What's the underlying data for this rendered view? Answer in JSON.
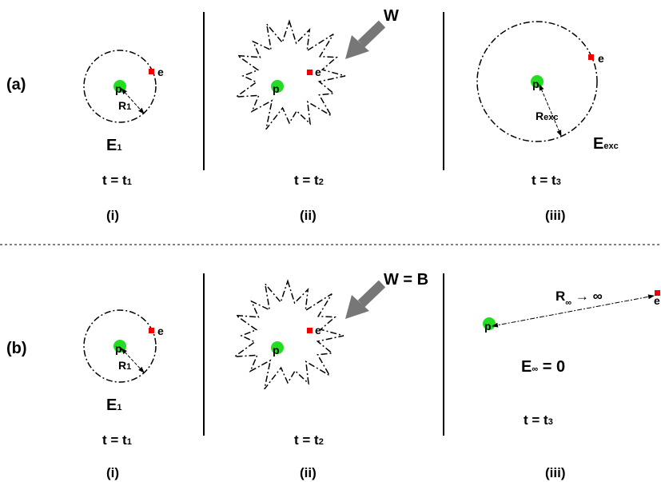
{
  "rows": [
    {
      "label": "(a)",
      "panels": [
        {
          "proton": "p",
          "electron": "e",
          "radius": {
            "main": "R",
            "sub": "1"
          },
          "energy": {
            "main": "E",
            "sub": "1"
          },
          "time": {
            "main": "t = t",
            "sub": "1"
          },
          "caption": "(i)"
        },
        {
          "proton": "p",
          "electron": "e",
          "arrow": "W",
          "time": {
            "main": "t = t",
            "sub": "2"
          },
          "caption": "(ii)"
        },
        {
          "proton": "p",
          "electron": "e",
          "radius": {
            "main": "R",
            "sub": "exc"
          },
          "energy": {
            "main": "E",
            "sub": "exc"
          },
          "time": {
            "main": "t = t",
            "sub": "3"
          },
          "caption": "(iii)"
        }
      ]
    },
    {
      "label": "(b)",
      "panels": [
        {
          "proton": "p",
          "electron": "e",
          "radius": {
            "main": "R",
            "sub": "1"
          },
          "energy": {
            "main": "E",
            "sub": "1"
          },
          "time": {
            "main": "t = t",
            "sub": "1"
          },
          "caption": "(i)"
        },
        {
          "proton": "p",
          "electron": "e",
          "arrow": "W = B",
          "time": {
            "main": "t = t",
            "sub": "2"
          },
          "caption": "(ii)"
        },
        {
          "proton": "p",
          "electron": "e",
          "radius": {
            "main": "R",
            "sub": "∞",
            "rest": " → ∞"
          },
          "energy": {
            "main": "E",
            "sub": "∞",
            "rest": " = 0"
          },
          "time": {
            "main": "t = t",
            "sub": "3"
          },
          "caption": "(iii)"
        }
      ]
    }
  ]
}
